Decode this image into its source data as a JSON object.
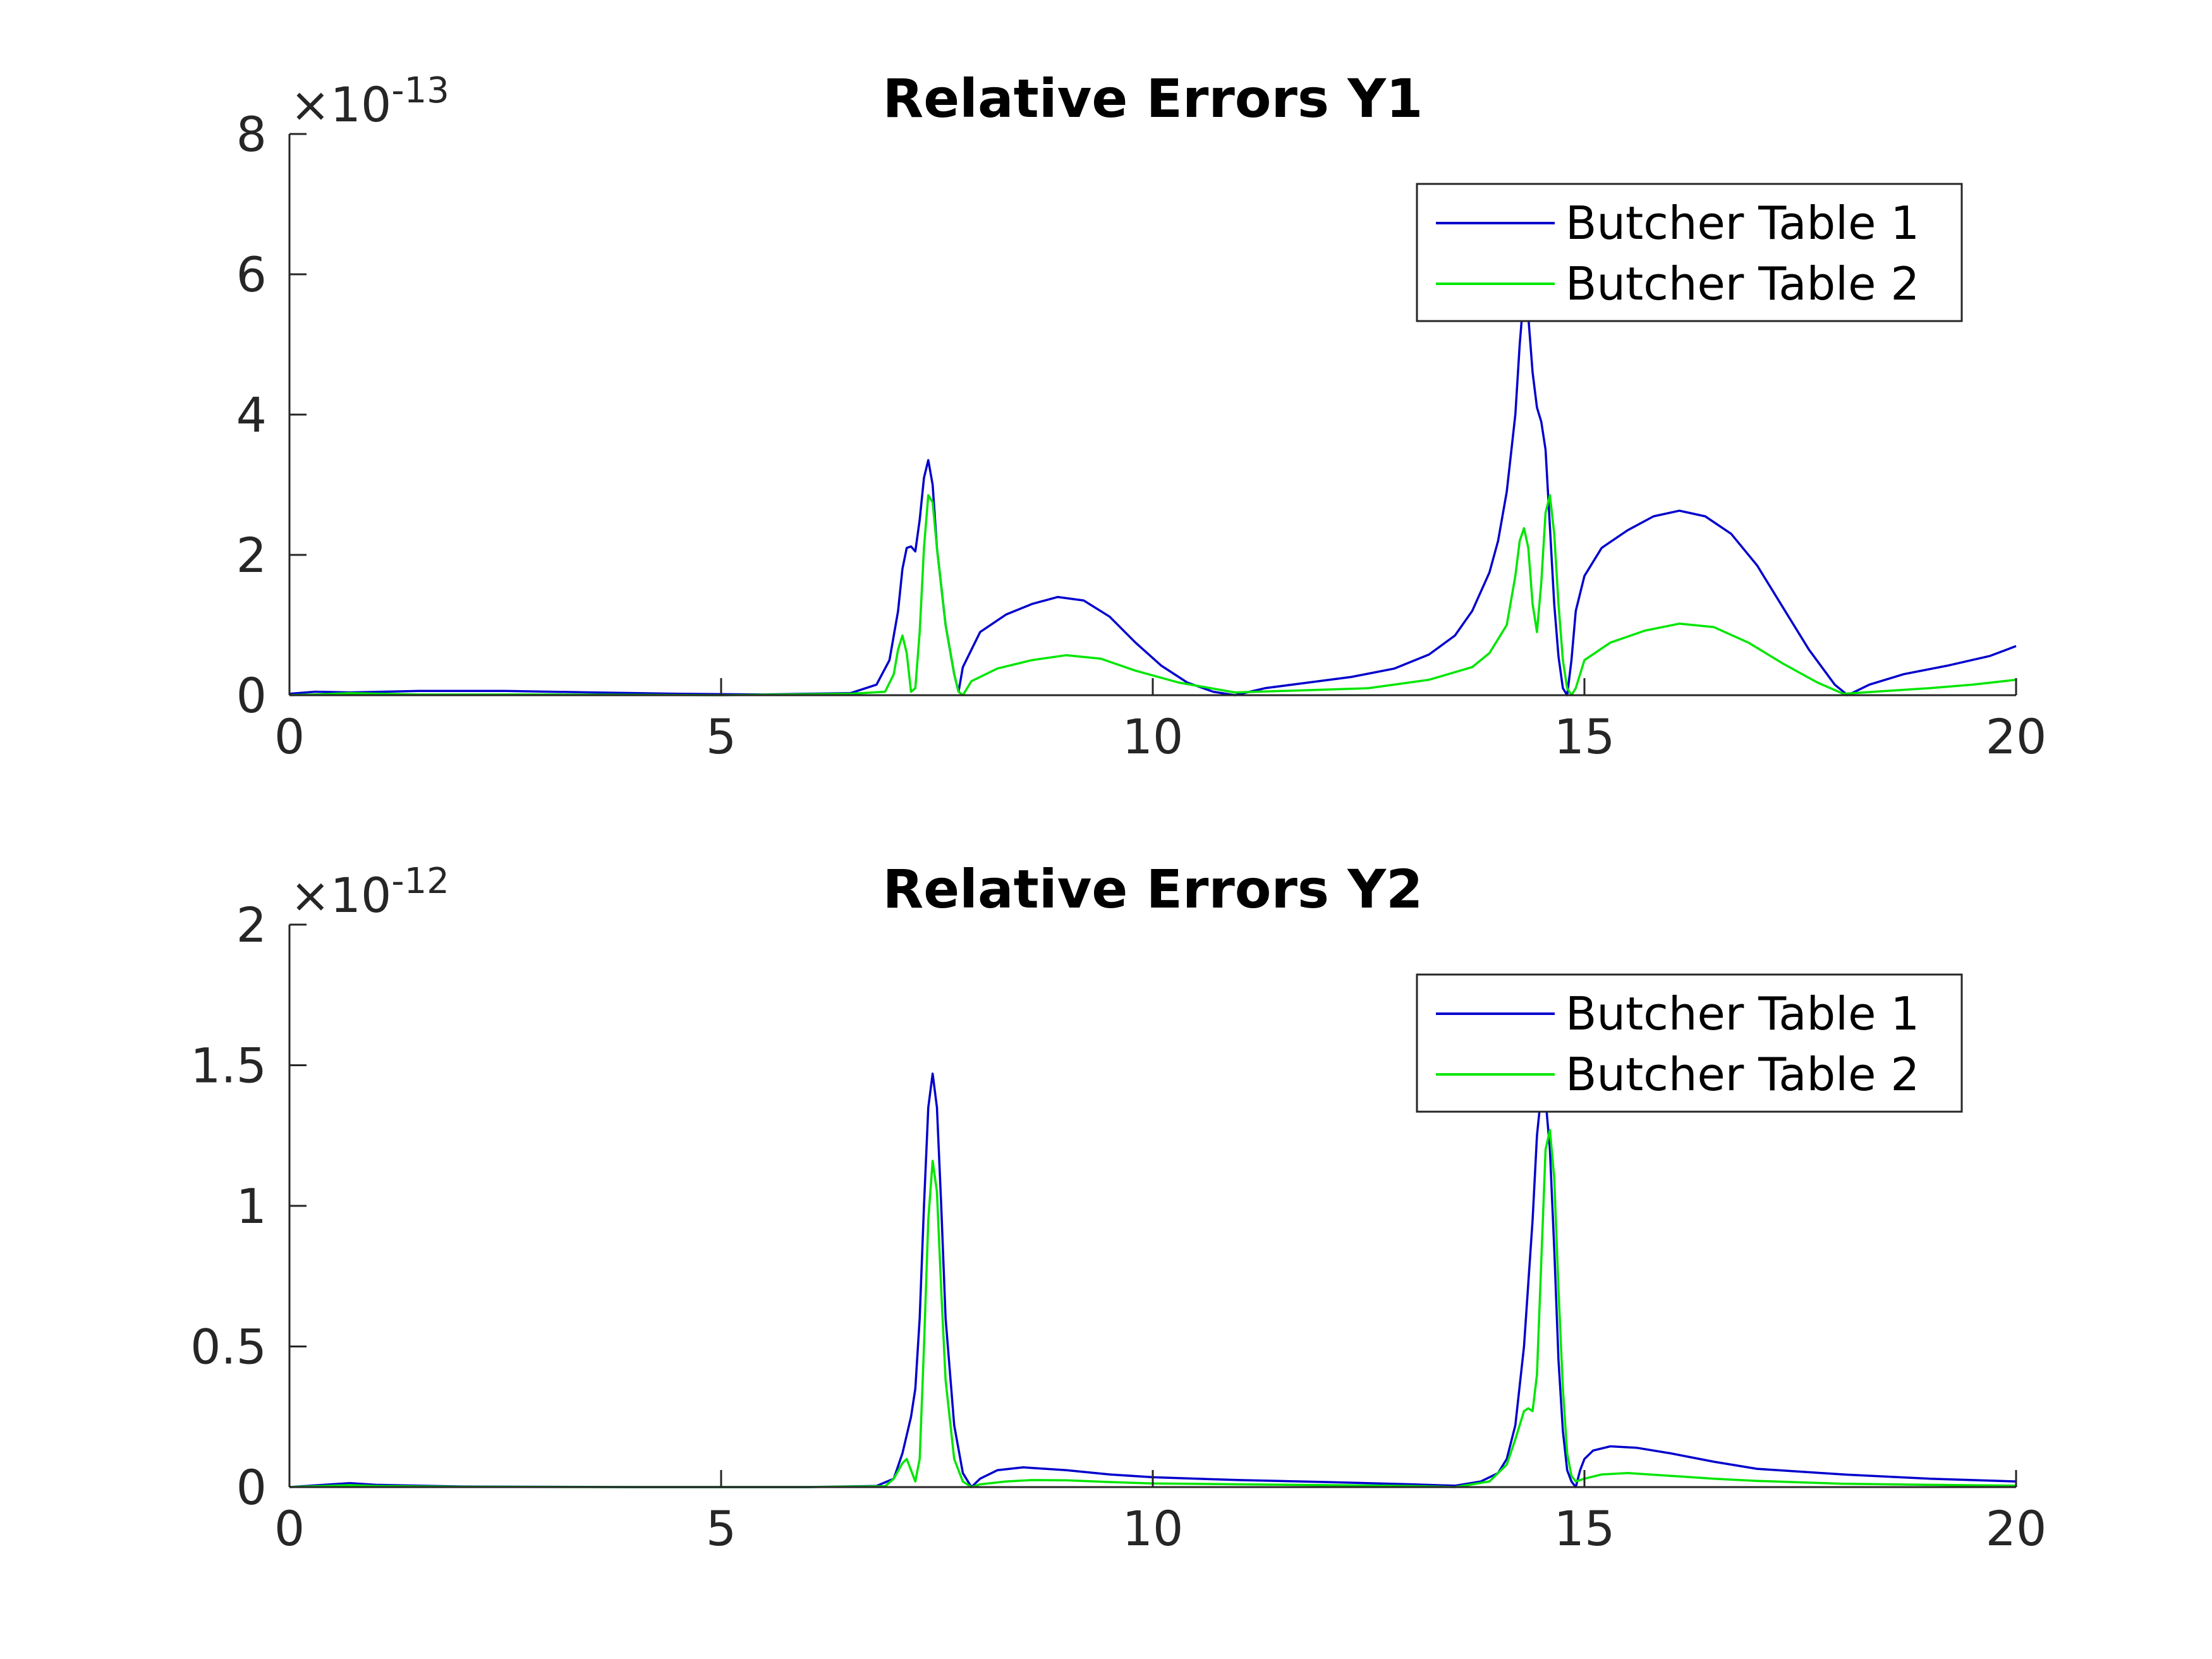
{
  "colors": {
    "series1": "#0000cc",
    "series2": "#00e600",
    "axis": "#262626"
  },
  "chart_data": [
    {
      "type": "line",
      "title": "Relative Errors Y1",
      "xlabel": "",
      "ylabel": "",
      "xlim": [
        0,
        20
      ],
      "ylim": [
        0,
        8
      ],
      "xticks": [
        "0",
        "5",
        "10",
        "15",
        "20"
      ],
      "yticks": [
        "0",
        "2",
        "4",
        "6",
        "8"
      ],
      "exponent": {
        "base": "×10",
        "power": "-13"
      },
      "grid": false,
      "legend_position": "top-right",
      "series": [
        {
          "name": "Butcher Table 1",
          "x": [
            0,
            0.3,
            0.7,
            1.5,
            2.5,
            3.5,
            4.5,
            5.5,
            6.5,
            6.8,
            6.95,
            7.05,
            7.1,
            7.15,
            7.2,
            7.25,
            7.3,
            7.35,
            7.4,
            7.45,
            7.5,
            7.6,
            7.7,
            7.75,
            7.8,
            8.0,
            8.3,
            8.6,
            8.9,
            9.2,
            9.5,
            9.8,
            10.1,
            10.4,
            10.7,
            10.95,
            11.3,
            11.8,
            12.3,
            12.8,
            13.2,
            13.5,
            13.7,
            13.9,
            14.0,
            14.1,
            14.2,
            14.25,
            14.3,
            14.35,
            14.4,
            14.45,
            14.5,
            14.55,
            14.6,
            14.65,
            14.7,
            14.75,
            14.8,
            14.85,
            14.9,
            15.0,
            15.2,
            15.5,
            15.8,
            16.1,
            16.4,
            16.7,
            17.0,
            17.3,
            17.6,
            17.9,
            18.05,
            18.3,
            18.7,
            19.2,
            19.7,
            20.0
          ],
          "y": [
            0.02,
            0.05,
            0.04,
            0.06,
            0.06,
            0.04,
            0.02,
            0.01,
            0.03,
            0.15,
            0.5,
            1.2,
            1.8,
            2.1,
            2.12,
            2.05,
            2.5,
            3.1,
            3.35,
            3.0,
            2.1,
            1.0,
            0.3,
            0.05,
            0.4,
            0.9,
            1.15,
            1.3,
            1.4,
            1.35,
            1.12,
            0.75,
            0.42,
            0.18,
            0.05,
            0.0,
            0.1,
            0.18,
            0.26,
            0.38,
            0.58,
            0.85,
            1.2,
            1.75,
            2.2,
            2.9,
            4.0,
            5.0,
            5.75,
            5.4,
            4.6,
            4.1,
            3.9,
            3.5,
            2.4,
            1.3,
            0.55,
            0.1,
            0.0,
            0.5,
            1.2,
            1.7,
            2.1,
            2.35,
            2.55,
            2.63,
            2.55,
            2.3,
            1.85,
            1.25,
            0.65,
            0.15,
            0.0,
            0.15,
            0.3,
            0.42,
            0.56,
            0.7
          ]
        },
        {
          "name": "Butcher Table 2",
          "x": [
            0,
            0.3,
            0.7,
            1.5,
            3,
            5,
            6.5,
            6.9,
            7.0,
            7.05,
            7.1,
            7.15,
            7.2,
            7.25,
            7.3,
            7.35,
            7.4,
            7.45,
            7.5,
            7.6,
            7.7,
            7.75,
            7.8,
            7.9,
            8.2,
            8.6,
            9.0,
            9.4,
            9.8,
            10.3,
            10.95,
            11.5,
            12.5,
            13.2,
            13.7,
            13.9,
            14.1,
            14.2,
            14.25,
            14.3,
            14.35,
            14.4,
            14.45,
            14.5,
            14.55,
            14.6,
            14.65,
            14.7,
            14.75,
            14.8,
            14.85,
            14.9,
            15.0,
            15.3,
            15.7,
            16.1,
            16.5,
            16.9,
            17.3,
            17.7,
            18.0,
            18.5,
            19.0,
            19.5,
            20.0
          ],
          "y": [
            0.0,
            0.01,
            0.03,
            0.01,
            0.01,
            0.0,
            0.02,
            0.05,
            0.3,
            0.65,
            0.85,
            0.6,
            0.05,
            0.1,
            0.9,
            2.1,
            2.85,
            2.75,
            2.1,
            1.0,
            0.3,
            0.05,
            0.0,
            0.2,
            0.38,
            0.5,
            0.57,
            0.52,
            0.35,
            0.18,
            0.04,
            0.06,
            0.1,
            0.22,
            0.4,
            0.6,
            1.0,
            1.7,
            2.2,
            2.38,
            2.1,
            1.3,
            0.9,
            1.6,
            2.6,
            2.85,
            2.3,
            1.3,
            0.5,
            0.1,
            0.0,
            0.1,
            0.5,
            0.75,
            0.92,
            1.02,
            0.97,
            0.75,
            0.45,
            0.18,
            0.02,
            0.06,
            0.1,
            0.15,
            0.22
          ]
        }
      ]
    },
    {
      "type": "line",
      "title": "Relative Errors Y2",
      "xlabel": "",
      "ylabel": "",
      "xlim": [
        0,
        20
      ],
      "ylim": [
        0,
        2
      ],
      "xticks": [
        "0",
        "5",
        "10",
        "15",
        "20"
      ],
      "yticks": [
        "0",
        "0.5",
        "1",
        "1.5",
        "2"
      ],
      "exponent": {
        "base": "×10",
        "power": "-12"
      },
      "grid": false,
      "legend_position": "top-right",
      "series": [
        {
          "name": "Butcher Table 1",
          "x": [
            0,
            0.4,
            0.7,
            1.0,
            2,
            4,
            6,
            6.8,
            7.0,
            7.1,
            7.2,
            7.25,
            7.3,
            7.35,
            7.4,
            7.45,
            7.5,
            7.55,
            7.6,
            7.7,
            7.8,
            7.9,
            8.0,
            8.2,
            8.5,
            9.0,
            9.5,
            10.0,
            11,
            12,
            13,
            13.5,
            13.8,
            14.0,
            14.1,
            14.2,
            14.3,
            14.4,
            14.45,
            14.5,
            14.55,
            14.6,
            14.65,
            14.7,
            14.75,
            14.8,
            14.85,
            14.9,
            14.95,
            15.0,
            15.1,
            15.3,
            15.6,
            16.0,
            16.5,
            17,
            18,
            19,
            20
          ],
          "y": [
            0.0,
            0.008,
            0.014,
            0.008,
            0.002,
            0.0,
            0.0,
            0.004,
            0.03,
            0.12,
            0.25,
            0.35,
            0.6,
            1.0,
            1.35,
            1.47,
            1.35,
            1.0,
            0.6,
            0.22,
            0.05,
            0.0,
            0.03,
            0.06,
            0.07,
            0.06,
            0.045,
            0.035,
            0.025,
            0.018,
            0.01,
            0.005,
            0.02,
            0.05,
            0.1,
            0.22,
            0.5,
            0.95,
            1.25,
            1.4,
            1.38,
            1.2,
            0.85,
            0.45,
            0.2,
            0.06,
            0.02,
            0.0,
            0.06,
            0.1,
            0.13,
            0.145,
            0.14,
            0.12,
            0.09,
            0.065,
            0.045,
            0.03,
            0.02
          ]
        },
        {
          "name": "Butcher Table 2",
          "x": [
            0,
            0.4,
            0.7,
            1.0,
            2,
            4,
            6,
            6.9,
            7.0,
            7.1,
            7.15,
            7.2,
            7.25,
            7.3,
            7.35,
            7.4,
            7.45,
            7.5,
            7.55,
            7.6,
            7.7,
            7.8,
            7.9,
            8.0,
            8.3,
            8.6,
            9.0,
            9.5,
            10.0,
            11,
            12,
            13,
            13.5,
            13.9,
            14.1,
            14.2,
            14.3,
            14.35,
            14.4,
            14.45,
            14.5,
            14.55,
            14.6,
            14.65,
            14.7,
            14.75,
            14.8,
            14.85,
            14.9,
            15.0,
            15.2,
            15.5,
            16.0,
            16.5,
            17,
            18,
            19,
            20
          ],
          "y": [
            0.0,
            0.004,
            0.007,
            0.004,
            0.001,
            0.0,
            0.0,
            0.003,
            0.03,
            0.085,
            0.1,
            0.06,
            0.02,
            0.1,
            0.5,
            0.95,
            1.16,
            1.05,
            0.7,
            0.38,
            0.1,
            0.02,
            0.0,
            0.01,
            0.02,
            0.025,
            0.024,
            0.018,
            0.013,
            0.01,
            0.007,
            0.004,
            0.0,
            0.02,
            0.08,
            0.17,
            0.27,
            0.28,
            0.27,
            0.4,
            0.8,
            1.2,
            1.27,
            1.1,
            0.7,
            0.35,
            0.12,
            0.04,
            0.02,
            0.03,
            0.045,
            0.05,
            0.04,
            0.03,
            0.022,
            0.012,
            0.008,
            0.005
          ]
        }
      ]
    }
  ]
}
